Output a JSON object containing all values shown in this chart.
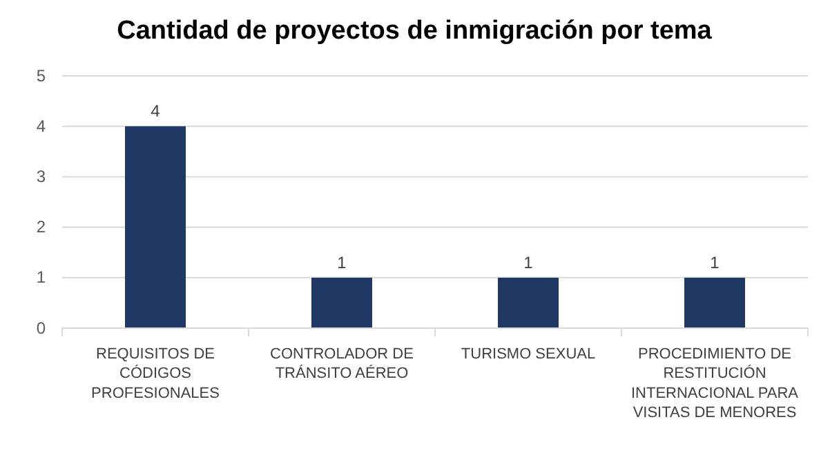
{
  "chart_data": {
    "type": "bar",
    "title": "Cantidad de proyectos de inmigración por tema",
    "categories": [
      "REQUISITOS DE CÓDIGOS PROFESIONALES",
      "CONTROLADOR DE TRÁNSITO AÉREO",
      "TURISMO SEXUAL",
      "PROCEDIMIENTO DE RESTITUCIÓN INTERNACIONAL PARA VISITAS DE MENORES"
    ],
    "values": [
      4,
      1,
      1,
      1
    ],
    "color": "#1f3864",
    "ylim": [
      0,
      5
    ],
    "yticks": [
      0,
      1,
      2,
      3,
      4,
      5
    ],
    "grid": "y",
    "data_labels": true
  }
}
